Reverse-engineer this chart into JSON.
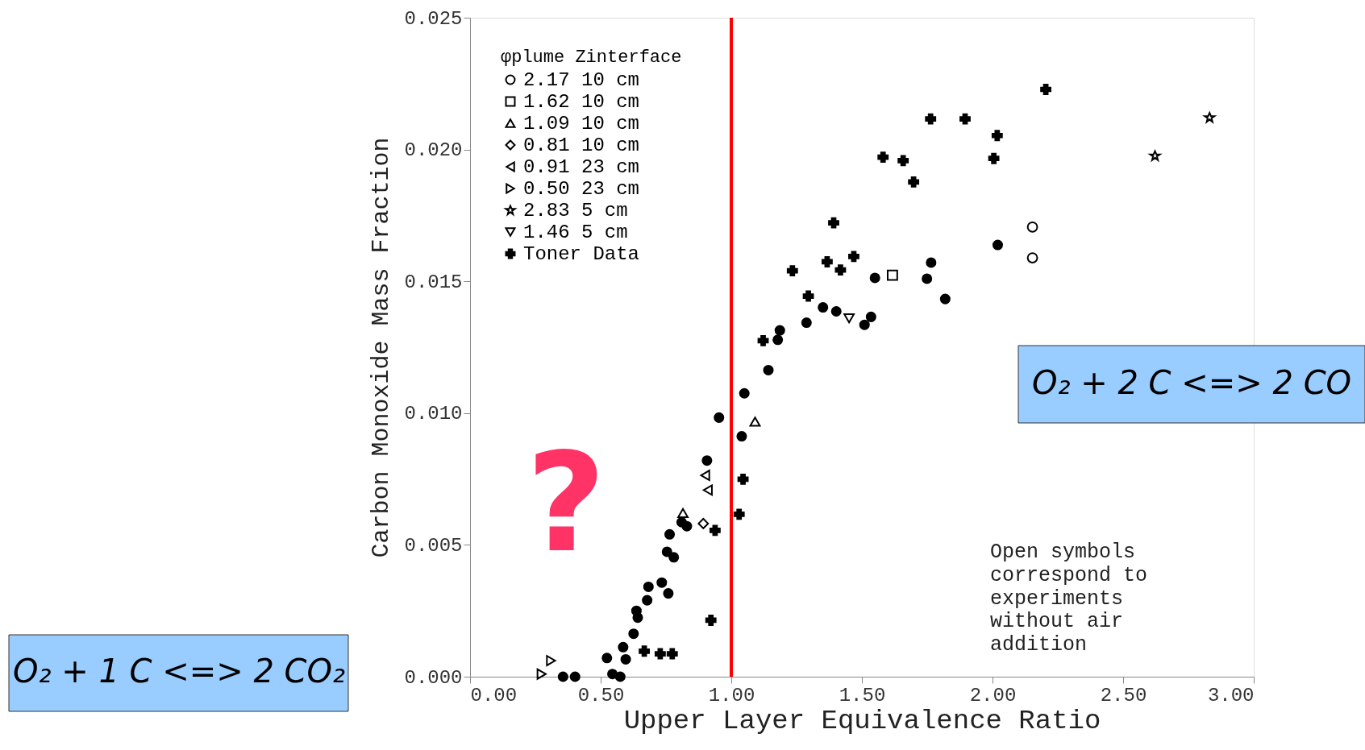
{
  "chart_data": {
    "type": "scatter",
    "xlabel": "Upper Layer Equivalence Ratio",
    "ylabel": "Carbon Monoxide Mass Fraction",
    "legend_title": "φplume  Zinterface",
    "legend": "top left",
    "grid": false,
    "xlim": [
      0,
      3
    ],
    "ylim": [
      0,
      0.025
    ],
    "xticks": [
      {
        "value": 0,
        "label": "0.00"
      },
      {
        "value": 0.5,
        "label": "0.50"
      },
      {
        "value": 1,
        "label": "1.00"
      },
      {
        "value": 1.5,
        "label": "1.50"
      },
      {
        "value": 2,
        "label": "2.00"
      },
      {
        "value": 2.5,
        "label": "2.50"
      },
      {
        "value": 3,
        "label": "3.00"
      }
    ],
    "yticks": [
      {
        "value": 0,
        "label": "0.000"
      },
      {
        "value": 0.005,
        "label": "0.005"
      },
      {
        "value": 0.01,
        "label": "0.010"
      },
      {
        "value": 0.015,
        "label": "0.015"
      },
      {
        "value": 0.02,
        "label": "0.020"
      },
      {
        "value": 0.025,
        "label": "0.025"
      }
    ],
    "series": [
      {
        "name": "2.17   10 cm",
        "color": "#000000",
        "marker": "circle",
        "x": [
          2.153,
          2.153
        ],
        "values": [
          0.01706,
          0.01589
        ]
      },
      {
        "name": "1.62   10 cm",
        "color": "#000000",
        "marker": "square",
        "x": [
          1.617
        ],
        "values": [
          0.01523
        ]
      },
      {
        "name": "1.09   10 cm",
        "color": "#000000",
        "marker": "triangle",
        "x": [
          1.091,
          0.815
        ],
        "values": [
          0.00968,
          0.00621
        ]
      },
      {
        "name": "0.81   10 cm",
        "color": "#000000",
        "marker": "diamond",
        "x": [
          0.893
        ],
        "values": [
          0.00581
        ]
      },
      {
        "name": "0.91   23 cm",
        "color": "#000000",
        "marker": "triangle-left",
        "x": [
          0.91,
          0.9
        ],
        "values": [
          0.00708,
          0.00764
        ]
      },
      {
        "name": "0.50   23 cm",
        "color": "#000000",
        "marker": "triangle-right",
        "x": [
          0.274,
          0.31
        ],
        "values": [
          0.0001,
          0.00061
        ]
      },
      {
        "name": "2.83    5 cm",
        "color": "#000000",
        "marker": "star",
        "x": [
          2.831,
          2.622
        ],
        "values": [
          0.02121,
          0.01976
        ]
      },
      {
        "name": "1.46    5 cm",
        "color": "#000000",
        "marker": "triangle-down",
        "x": [
          1.451
        ],
        "values": [
          0.0136
        ]
      },
      {
        "name": "Toner Data",
        "color": "#000000",
        "marker": "cross",
        "x": [
          1.392,
          1.367,
          1.469,
          1.418,
          1.234,
          1.295,
          1.122,
          2.204,
          1.763,
          1.895,
          2.018,
          1.581,
          1.658,
          2.005,
          1.698,
          1.045,
          1.03,
          0.922,
          0.938,
          0.667,
          0.728,
          0.774
        ],
        "values": [
          0.01722,
          0.01574,
          0.01594,
          0.01543,
          0.0154,
          0.01444,
          0.01275,
          0.02228,
          0.02116,
          0.02116,
          0.02053,
          0.01971,
          0.01958,
          0.01966,
          0.01877,
          0.00749,
          0.00616,
          0.00214,
          0.00555,
          0.00097,
          0.00087,
          0.00087
        ]
      },
      {
        "color": "#000000",
        "marker": "circle",
        "x": [
          1.55,
          1.765,
          1.749,
          1.819,
          2.02,
          1.351,
          1.402,
          1.535,
          1.51,
          1.288,
          1.186,
          1.178,
          1.142,
          1.05,
          1.04,
          0.953,
          0.907,
          0.81,
          0.83,
          0.764,
          0.754,
          0.78,
          0.683,
          0.734,
          0.759,
          0.678,
          0.637,
          0.642,
          0.626,
          0.586,
          0.524,
          0.596,
          0.545,
          0.575,
          0.356,
          0.402
        ],
        "values": [
          0.01513,
          0.01571,
          0.0151,
          0.01433,
          0.01638,
          0.01401,
          0.01386,
          0.01365,
          0.01335,
          0.01343,
          0.01314,
          0.01278,
          0.01163,
          0.01075,
          0.00912,
          0.00983,
          0.0082,
          0.00586,
          0.00571,
          0.0054,
          0.00474,
          0.00453,
          0.00341,
          0.00357,
          0.00316,
          0.0029,
          0.0025,
          0.00224,
          0.00163,
          0.00112,
          0.00071,
          0.00066,
          0.0001,
          0.0,
          0.0,
          0.0
        ]
      }
    ],
    "ref_lines": [
      {
        "axis": "x",
        "value": 1.0,
        "color": "#ff0000"
      }
    ],
    "annotations": [
      "O₂ + 2 C  <=> 2 CO",
      "O₂ + 1 C <=> 2 CO₂",
      "?",
      "Open symbols correspond to experiments without air addition"
    ]
  }
}
